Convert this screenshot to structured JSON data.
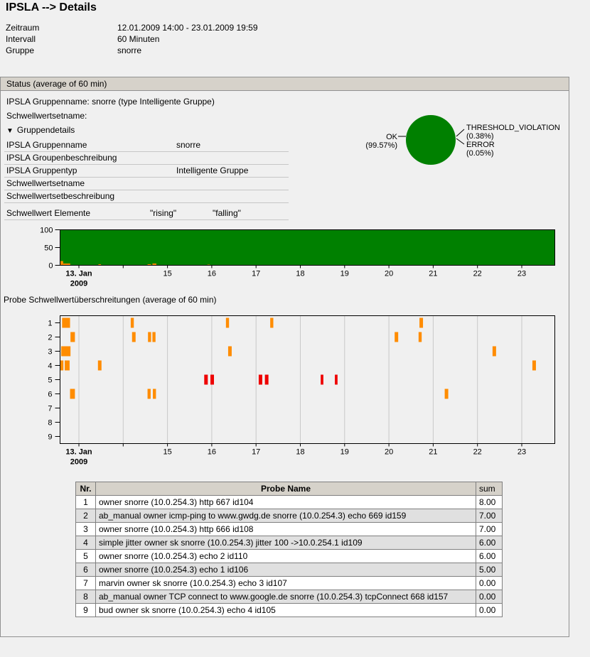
{
  "page": {
    "title": "IPSLA --> Details",
    "info": [
      {
        "label": "Zeitraum",
        "value": "12.01.2009 14:00 - 23.01.2009 19:59"
      },
      {
        "label": "Intervall",
        "value": "60 Minuten"
      },
      {
        "label": "Gruppe",
        "value": "snorre"
      }
    ]
  },
  "panel": {
    "header": "Status (average of 60 min)",
    "group_line": "IPSLA Gruppenname: snorre (type Intelligente Gruppe)",
    "threshold_line": "Schwellwertsetname:",
    "details_toggle_icon": "▼",
    "details_toggle": "Gruppendetails",
    "details_rows": [
      {
        "label": "IPSLA Gruppenname",
        "value": "snorre"
      },
      {
        "label": "IPSLA Groupenbeschreibung",
        "value": ""
      },
      {
        "label": "IPSLA Gruppentyp",
        "value": "Intelligente Gruppe"
      },
      {
        "label": "Schwellwertsetname",
        "value": ""
      },
      {
        "label": "Schwellwertsetbeschreibung",
        "value": ""
      }
    ],
    "elements_row": {
      "label": "Schwellwert Elemente",
      "col1": "\"rising\"",
      "col2": "\"falling\""
    }
  },
  "probe_section_title": "Probe Schwellwertüberschreitungen (average of 60 min)",
  "table": {
    "columns": [
      "Nr.",
      "Probe Name",
      "sum"
    ],
    "rows": [
      {
        "nr": "1",
        "name": "owner snorre (10.0.254.3) http 667 id104",
        "sum": "8.00"
      },
      {
        "nr": "2",
        "name": "ab_manual owner icmp-ping to www.gwdg.de snorre (10.0.254.3) echo 669 id159",
        "sum": "7.00"
      },
      {
        "nr": "3",
        "name": "owner snorre (10.0.254.3) http 666 id108",
        "sum": "7.00"
      },
      {
        "nr": "4",
        "name": "simple jitter owner sk snorre (10.0.254.3) jitter 100 ->10.0.254.1 id109",
        "sum": "6.00"
      },
      {
        "nr": "5",
        "name": "owner snorre (10.0.254.3) echo 2 id110",
        "sum": "6.00"
      },
      {
        "nr": "6",
        "name": "owner snorre (10.0.254.3) echo 1 id106",
        "sum": "5.00"
      },
      {
        "nr": "7",
        "name": "marvin owner sk snorre (10.0.254.3) echo 3 id107",
        "sum": "0.00"
      },
      {
        "nr": "8",
        "name": "ab_manual owner TCP connect to www.google.de snorre (10.0.254.3) tcpConnect 668 id157",
        "sum": "0.00"
      },
      {
        "nr": "9",
        "name": "bud owner sk snorre (10.0.254.3) echo 4 id105",
        "sum": "0.00"
      }
    ]
  },
  "chart_data": [
    {
      "id": "status_pie",
      "type": "pie",
      "slices": [
        {
          "label": "OK",
          "value": 99.57,
          "pct_label": "(99.57%)",
          "color": "#008000"
        },
        {
          "label": "THRESHOLD_VIOLATION",
          "value": 0.38,
          "pct_label": "(0.38%)",
          "color": "#ff8c00"
        },
        {
          "label": "ERROR",
          "value": 0.05,
          "pct_label": "(0.05%)",
          "color": "#ee0000"
        }
      ],
      "legend_position": "callout-left-right"
    },
    {
      "id": "status_timeline",
      "type": "bar",
      "stacked": true,
      "ylim": [
        0,
        100
      ],
      "yticks": [
        0,
        50,
        100
      ],
      "x_domain_days_jan2009": [
        12.583,
        23.755
      ],
      "grid": false,
      "colors": {
        "ok": "#008000",
        "violation": "#ff8c00"
      },
      "ok_level_pct": 100,
      "violation_spikes": [
        {
          "day": 12.585,
          "w": 0.06,
          "pct": 12
        },
        {
          "day": 12.645,
          "w": 0.16,
          "pct": 5
        },
        {
          "day": 13.44,
          "w": 0.06,
          "pct": 3
        },
        {
          "day": 14.55,
          "w": 0.08,
          "pct": 3
        },
        {
          "day": 14.66,
          "w": 0.09,
          "pct": 5
        },
        {
          "day": 15.9,
          "w": 0.06,
          "pct": 2
        }
      ],
      "xticks": [
        {
          "day": 13,
          "label": "13. Jan",
          "sublabel": "2009",
          "bold": true
        },
        {
          "day": 14,
          "label": ""
        },
        {
          "day": 15,
          "label": "15"
        },
        {
          "day": 16,
          "label": "16"
        },
        {
          "day": 17,
          "label": "17"
        },
        {
          "day": 18,
          "label": "18"
        },
        {
          "day": 19,
          "label": "19"
        },
        {
          "day": 20,
          "label": "20"
        },
        {
          "day": 21,
          "label": "21"
        },
        {
          "day": 22,
          "label": "22"
        },
        {
          "day": 23,
          "label": "23"
        }
      ]
    },
    {
      "id": "probe_violations",
      "type": "scatter",
      "rows": [
        1,
        2,
        3,
        4,
        5,
        6,
        7,
        8,
        9
      ],
      "grid": true,
      "palette": {
        "orange": "#ff8c00",
        "red": "#ee0000"
      },
      "x_domain_days_jan2009": [
        12.583,
        23.755
      ],
      "marks": [
        {
          "row": 1,
          "day": 12.62,
          "w": 0.18,
          "color": "orange"
        },
        {
          "row": 1,
          "day": 14.17,
          "w": 0.07,
          "color": "orange"
        },
        {
          "row": 1,
          "day": 16.32,
          "w": 0.07,
          "color": "orange"
        },
        {
          "row": 1,
          "day": 17.32,
          "w": 0.07,
          "color": "orange"
        },
        {
          "row": 1,
          "day": 20.69,
          "w": 0.08,
          "color": "orange"
        },
        {
          "row": 2,
          "day": 12.81,
          "w": 0.1,
          "color": "orange"
        },
        {
          "row": 2,
          "day": 14.2,
          "w": 0.08,
          "color": "orange"
        },
        {
          "row": 2,
          "day": 14.56,
          "w": 0.07,
          "color": "orange"
        },
        {
          "row": 2,
          "day": 14.66,
          "w": 0.07,
          "color": "orange"
        },
        {
          "row": 2,
          "day": 20.13,
          "w": 0.08,
          "color": "orange"
        },
        {
          "row": 2,
          "day": 20.67,
          "w": 0.07,
          "color": "orange"
        },
        {
          "row": 3,
          "day": 12.6,
          "w": 0.21,
          "color": "orange"
        },
        {
          "row": 3,
          "day": 16.37,
          "w": 0.08,
          "color": "orange"
        },
        {
          "row": 3,
          "day": 22.34,
          "w": 0.08,
          "color": "orange"
        },
        {
          "row": 4,
          "day": 12.58,
          "w": 0.07,
          "color": "orange"
        },
        {
          "row": 4,
          "day": 12.68,
          "w": 0.11,
          "color": "orange"
        },
        {
          "row": 4,
          "day": 13.43,
          "w": 0.08,
          "color": "orange"
        },
        {
          "row": 4,
          "day": 23.24,
          "w": 0.08,
          "color": "orange"
        },
        {
          "row": 5,
          "day": 15.83,
          "w": 0.08,
          "color": "red"
        },
        {
          "row": 5,
          "day": 15.97,
          "w": 0.08,
          "color": "red"
        },
        {
          "row": 5,
          "day": 17.06,
          "w": 0.08,
          "color": "red"
        },
        {
          "row": 5,
          "day": 17.2,
          "w": 0.08,
          "color": "red"
        },
        {
          "row": 5,
          "day": 18.46,
          "w": 0.06,
          "color": "red"
        },
        {
          "row": 5,
          "day": 18.78,
          "w": 0.06,
          "color": "red"
        },
        {
          "row": 6,
          "day": 12.8,
          "w": 0.11,
          "color": "orange"
        },
        {
          "row": 6,
          "day": 14.55,
          "w": 0.07,
          "color": "orange"
        },
        {
          "row": 6,
          "day": 14.67,
          "w": 0.07,
          "color": "orange"
        },
        {
          "row": 6,
          "day": 21.26,
          "w": 0.08,
          "color": "orange"
        }
      ],
      "xticks": [
        {
          "day": 13,
          "label": "13. Jan",
          "sublabel": "2009",
          "bold": true
        },
        {
          "day": 14,
          "label": ""
        },
        {
          "day": 15,
          "label": "15"
        },
        {
          "day": 16,
          "label": "16"
        },
        {
          "day": 17,
          "label": "17"
        },
        {
          "day": 18,
          "label": "18"
        },
        {
          "day": 19,
          "label": "19"
        },
        {
          "day": 20,
          "label": "20"
        },
        {
          "day": 21,
          "label": "21"
        },
        {
          "day": 22,
          "label": "22"
        },
        {
          "day": 23,
          "label": "23"
        }
      ]
    }
  ],
  "colors": {
    "panel_header_bg": "#d6d2ca",
    "alt_row_bg": "#e0e0e0",
    "grid_line": "#c9c9c9"
  }
}
